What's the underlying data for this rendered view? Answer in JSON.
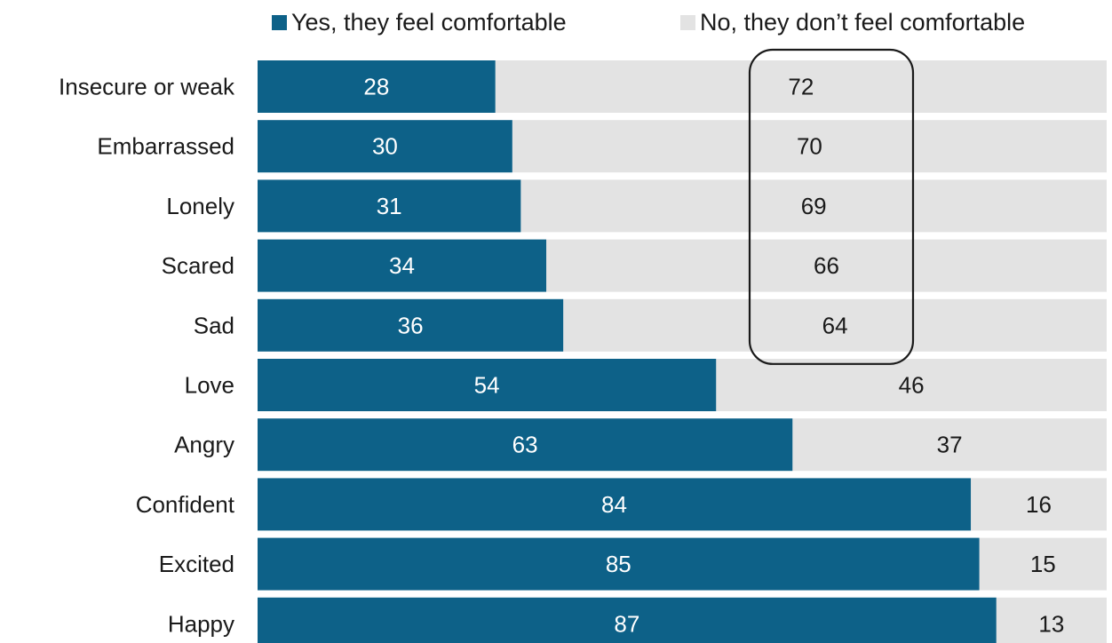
{
  "legend": {
    "yes": "Yes, they feel comfortable",
    "no": "No, they don’t feel comfortable"
  },
  "colors": {
    "yes": "#0d6188",
    "no": "#e3e3e3",
    "yes_text": "#ffffff",
    "no_text": "#1a1a1a",
    "highlight_border": "#1a1a1a"
  },
  "chart_data": {
    "type": "bar",
    "orientation": "horizontal",
    "stacked": true,
    "categories": [
      "Insecure or weak",
      "Embarrassed",
      "Lonely",
      "Scared",
      "Sad",
      "Love",
      "Angry",
      "Confident",
      "Excited",
      "Happy"
    ],
    "series": [
      {
        "name": "Yes, they feel comfortable",
        "values": [
          28,
          30,
          31,
          34,
          36,
          54,
          63,
          84,
          85,
          87
        ]
      },
      {
        "name": "No, they don’t feel comfortable",
        "values": [
          72,
          70,
          69,
          66,
          64,
          46,
          37,
          16,
          15,
          13
        ]
      }
    ],
    "xlim": [
      0,
      100
    ],
    "grid": false,
    "legend_position": "top",
    "highlight": {
      "series": "No, they don’t feel comfortable",
      "categories": [
        "Insecure or weak",
        "Embarrassed",
        "Lonely",
        "Scared",
        "Sad"
      ]
    }
  }
}
